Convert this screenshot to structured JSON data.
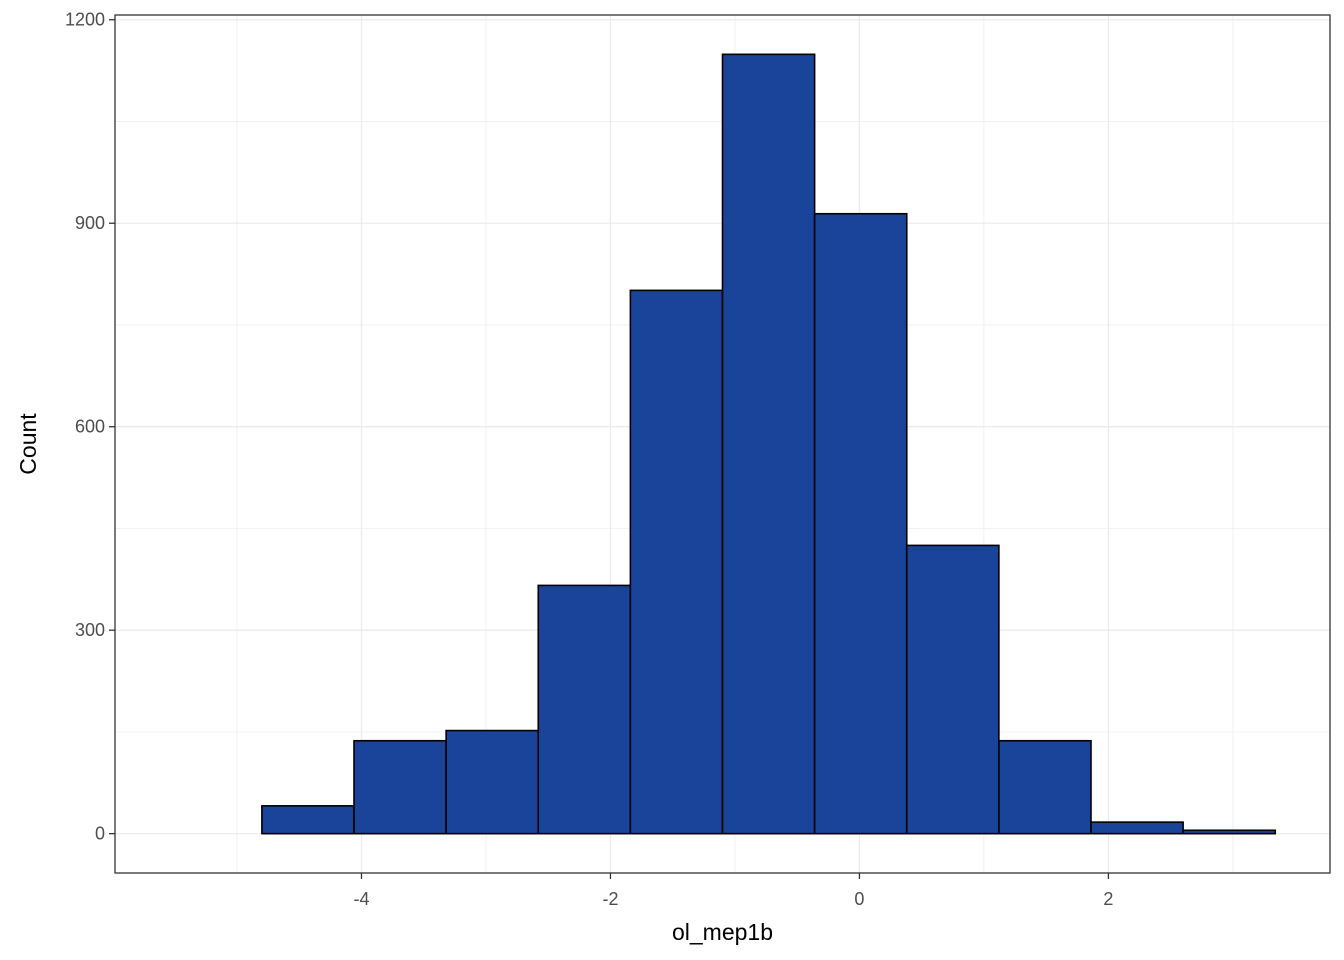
{
  "chart_data": {
    "type": "bar",
    "subtype": "histogram",
    "title": "",
    "xlabel": "ol_mep1b",
    "ylabel": "Count",
    "bins": [
      {
        "x0": -5.54,
        "x1": -4.8,
        "count": 0
      },
      {
        "x0": -4.8,
        "x1": -4.06,
        "count": 41
      },
      {
        "x0": -4.06,
        "x1": -3.32,
        "count": 137
      },
      {
        "x0": -3.32,
        "x1": -2.58,
        "count": 152
      },
      {
        "x0": -2.58,
        "x1": -1.84,
        "count": 366
      },
      {
        "x0": -1.84,
        "x1": -1.1,
        "count": 801
      },
      {
        "x0": -1.1,
        "x1": -0.36,
        "count": 1149
      },
      {
        "x0": -0.36,
        "x1": 0.38,
        "count": 914
      },
      {
        "x0": 0.38,
        "x1": 1.12,
        "count": 425
      },
      {
        "x0": 1.12,
        "x1": 1.86,
        "count": 137
      },
      {
        "x0": 1.86,
        "x1": 2.6,
        "count": 17
      },
      {
        "x0": 2.6,
        "x1": 3.34,
        "count": 5
      }
    ],
    "x_ticks": [
      -4,
      -2,
      0,
      2
    ],
    "x_tick_labels": [
      "-4",
      "-2",
      "0",
      "2"
    ],
    "y_ticks": [
      0,
      300,
      600,
      900,
      1200
    ],
    "y_tick_labels": [
      "0",
      "300",
      "600",
      "900",
      "1200"
    ],
    "xlim": [
      -5.98,
      3.78
    ],
    "ylim": [
      -58,
      1207
    ],
    "grid": true,
    "theme": "bw",
    "fill_color": "#1a4499",
    "edge_color": "#000000",
    "grid_color": "#ebebeb"
  }
}
